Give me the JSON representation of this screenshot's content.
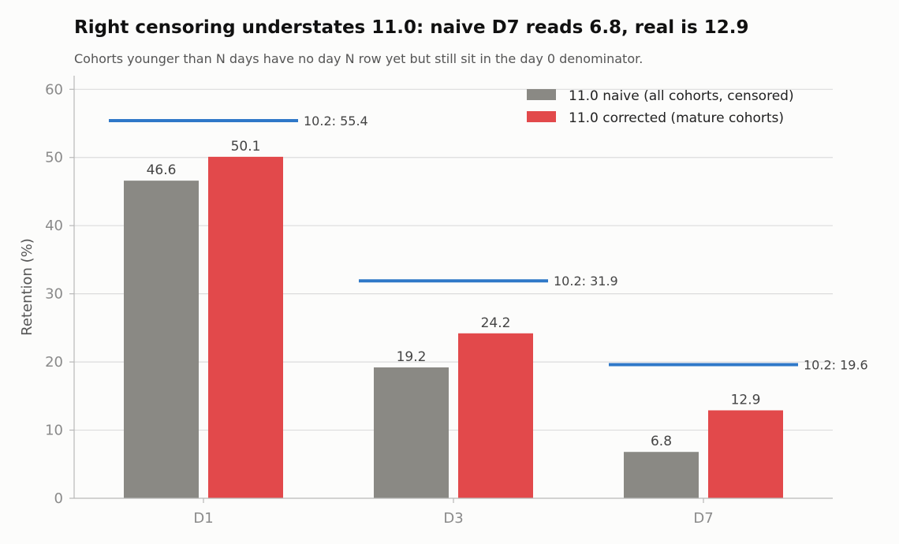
{
  "chart_data": {
    "type": "bar",
    "title": "Right censoring understates 11.0: naive D7 reads 6.8, real is 12.9",
    "subtitle": "Cohorts younger than N days have no day N row yet but still sit in the day 0 denominator.",
    "ylabel": "Retention (%)",
    "xlabel": "",
    "ylim": [
      0,
      60
    ],
    "yticks": [
      0,
      10,
      20,
      30,
      40,
      50,
      60
    ],
    "grid": true,
    "legend_position": "top-right",
    "categories": [
      "D1",
      "D3",
      "D7"
    ],
    "series": [
      {
        "name": "11.0 naive (all cohorts, censored)",
        "values": [
          46.6,
          19.2,
          6.8
        ],
        "color": "#8a8984"
      },
      {
        "name": "11.0 corrected (mature cohorts)",
        "values": [
          50.1,
          24.2,
          12.9
        ],
        "color": "#e2494b"
      }
    ],
    "reference": {
      "values": [
        55.4,
        31.9,
        19.6
      ],
      "labels": [
        "10.2: 55.4",
        "10.2: 31.9",
        "10.2: 19.6"
      ],
      "color": "#2f78c8"
    }
  }
}
